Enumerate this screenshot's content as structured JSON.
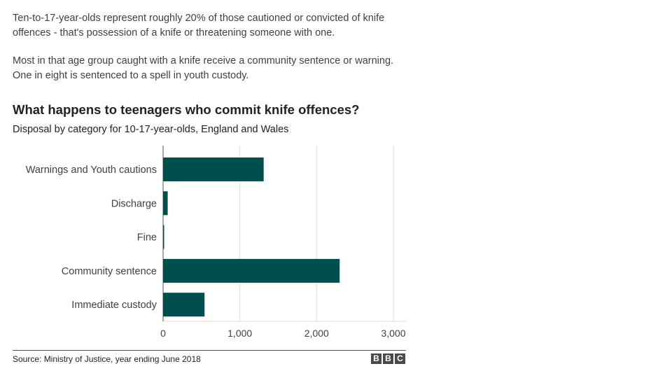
{
  "article": {
    "paragraph1": "Ten-to-17-year-olds represent roughly 20% of those cautioned or convicted of knife offences - that's possession of a knife or threatening someone with one.",
    "paragraph2": "Most in that age group caught with a knife receive a community sentence or warning. One in eight is sentenced to a spell in youth custody."
  },
  "chart_data": {
    "type": "bar",
    "orientation": "horizontal",
    "title": "What happens to teenagers who commit knife offences?",
    "subtitle": "Disposal by category for 10-17-year-olds, England and Wales",
    "categories": [
      "Warnings and Youth cautions",
      "Discharge",
      "Fine",
      "Community sentence",
      "Immediate custody"
    ],
    "values": [
      1310,
      60,
      10,
      2300,
      540
    ],
    "xlim": [
      0,
      3000
    ],
    "xticks": [
      0,
      1000,
      2000,
      3000
    ],
    "xtick_labels": [
      "0",
      "1,000",
      "2,000",
      "3,000"
    ],
    "grid": true,
    "bar_color": "#004f4f",
    "grid_color": "#dddddd"
  },
  "footer": {
    "source": "Source: Ministry of Justice, year ending June 2018",
    "logo_letters": [
      "B",
      "B",
      "C"
    ]
  }
}
